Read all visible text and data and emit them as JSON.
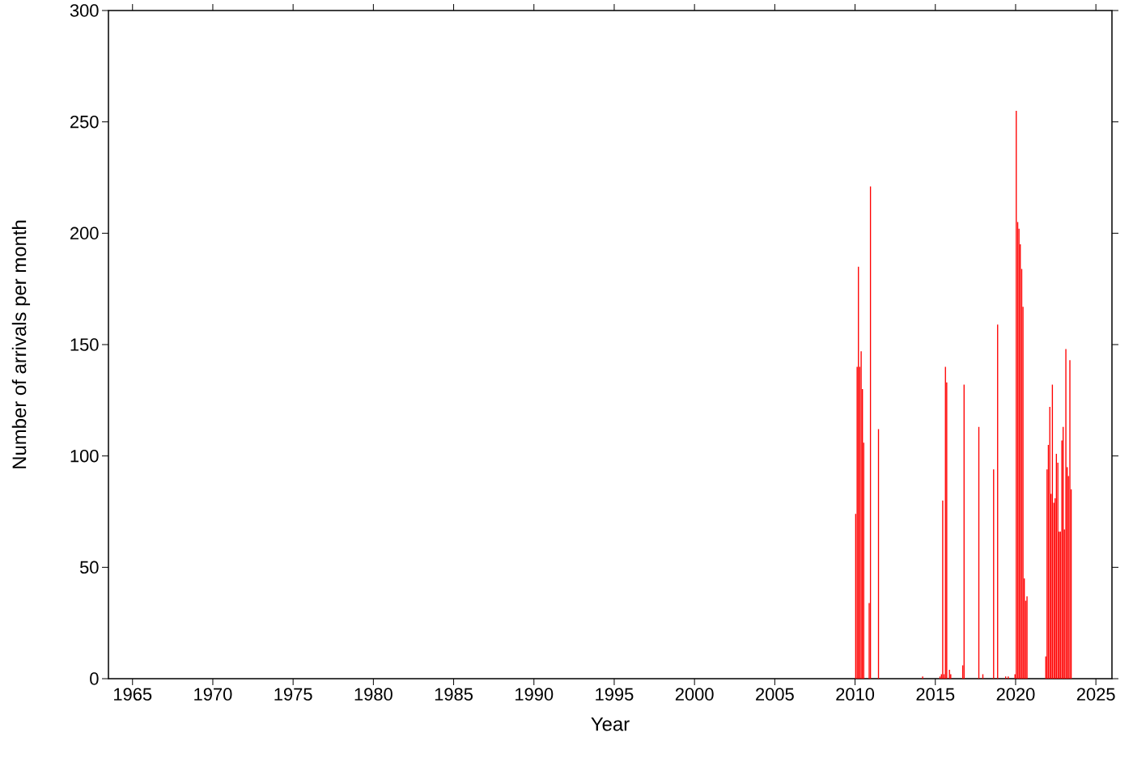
{
  "chart_data": {
    "type": "bar",
    "xlabel": "Year",
    "ylabel": "Number of arrivals per month",
    "xlim": [
      1963.5,
      2026
    ],
    "ylim": [
      0,
      300
    ],
    "xticks": [
      1965,
      1970,
      1975,
      1980,
      1985,
      1990,
      1995,
      2000,
      2005,
      2010,
      2015,
      2020,
      2025
    ],
    "yticks": [
      0,
      50,
      100,
      150,
      200,
      250,
      300
    ],
    "color": "#ff0000",
    "x": [
      2010.04,
      2010.13,
      2010.21,
      2010.29,
      2010.38,
      2010.46,
      2010.54,
      2010.88,
      2010.96,
      2011.46,
      2014.21,
      2015.29,
      2015.38,
      2015.46,
      2015.54,
      2015.63,
      2015.71,
      2015.88,
      2015.96,
      2016.71,
      2016.79,
      2017.71,
      2017.96,
      2018.63,
      2018.88,
      2019.38,
      2019.54,
      2019.96,
      2020.04,
      2020.13,
      2020.21,
      2020.29,
      2020.38,
      2020.46,
      2020.54,
      2020.63,
      2020.71,
      2021.88,
      2021.96,
      2022.04,
      2022.13,
      2022.21,
      2022.29,
      2022.38,
      2022.46,
      2022.54,
      2022.63,
      2022.71,
      2022.79,
      2022.88,
      2022.96,
      2023.04,
      2023.13,
      2023.21,
      2023.29,
      2023.38,
      2023.46
    ],
    "values": [
      74,
      140,
      185,
      140,
      147,
      130,
      106,
      34,
      221,
      112,
      1,
      1,
      2,
      80,
      2,
      140,
      133,
      4,
      2,
      6,
      132,
      113,
      2,
      94,
      159,
      1,
      1,
      2,
      255,
      205,
      202,
      195,
      184,
      167,
      45,
      35,
      37,
      10,
      94,
      105,
      122,
      83,
      132,
      79,
      81,
      101,
      97,
      66,
      66,
      107,
      113,
      67,
      148,
      95,
      91,
      143,
      85
    ]
  }
}
